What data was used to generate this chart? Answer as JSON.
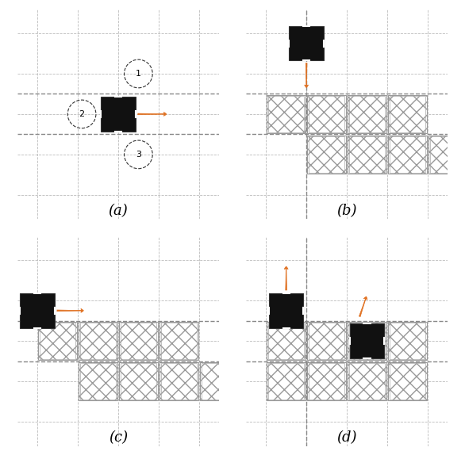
{
  "panel_labels": [
    "(a)",
    "(b)",
    "(c)",
    "(d)"
  ],
  "arrow_color": "#E07020",
  "black_tile_color": "#111111",
  "grid_color_light": "#bbbbbb",
  "grid_color_dark": "#888888",
  "tile_edge_color": "#888888",
  "tile_face_color": "#ffffff",
  "figsize": [
    5.86,
    5.74
  ],
  "dpi": 100
}
